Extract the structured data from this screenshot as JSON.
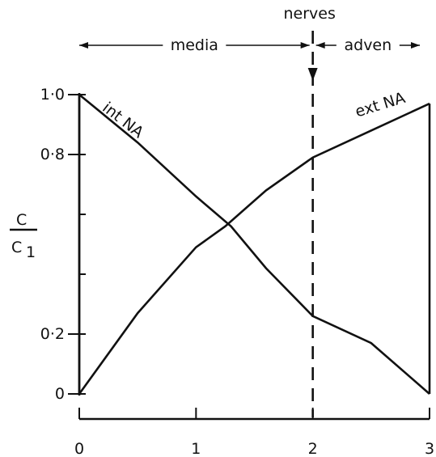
{
  "chart_data": {
    "type": "line",
    "title": "",
    "xlabel": "",
    "ylabel_numerator": "C",
    "ylabel_denominator": "C",
    "ylabel_denominator_subscript": "1",
    "x_ticks": [
      "0",
      "1",
      "2",
      "3"
    ],
    "xlim": [
      0,
      3
    ],
    "ylim": [
      0,
      1.0
    ],
    "y_ticks": [
      {
        "value": 0,
        "label": "0"
      },
      {
        "value": 0.2,
        "label": "0·2"
      },
      {
        "value": 0.8,
        "label": "0·8"
      },
      {
        "value": 1.0,
        "label": "1·0"
      }
    ],
    "y_minor_ticks": [
      0.4,
      0.6
    ],
    "series": [
      {
        "name": "int NA",
        "x": [
          0,
          0.5,
          1.0,
          1.3,
          1.6,
          2.0,
          2.5,
          3.0
        ],
        "y": [
          1.0,
          0.84,
          0.66,
          0.56,
          0.42,
          0.26,
          0.17,
          0.0
        ]
      },
      {
        "name": "ext NA",
        "x": [
          0,
          0.5,
          1.0,
          1.25,
          1.6,
          2.0,
          2.5,
          3.0
        ],
        "y": [
          0.0,
          0.27,
          0.49,
          0.56,
          0.68,
          0.79,
          0.88,
          0.97
        ]
      }
    ],
    "left_edge": {
      "x": 0,
      "from": 0.0,
      "to": 1.0
    },
    "right_edge": {
      "x": 3,
      "from": 0.0,
      "to": 0.97
    },
    "boundary": {
      "x": 2,
      "label": "nerves"
    },
    "regions": [
      {
        "label": "media",
        "from": 0,
        "to": 2
      },
      {
        "label": "adven",
        "from": 2,
        "to": 3
      }
    ]
  }
}
